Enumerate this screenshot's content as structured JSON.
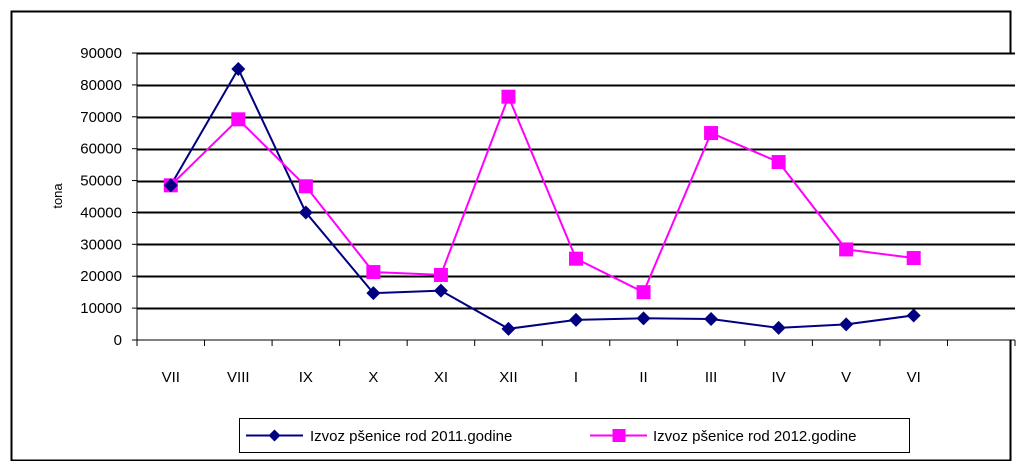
{
  "chart_data": {
    "type": "line",
    "title": "",
    "xlabel": "",
    "ylabel": "tona",
    "categories": [
      "VII",
      "VIII",
      "IX",
      "X",
      "XI",
      "XII",
      "I",
      "II",
      "III",
      "IV",
      "V",
      "VI"
    ],
    "ylim": [
      0,
      90000
    ],
    "yticks": [
      0,
      10000,
      20000,
      30000,
      40000,
      50000,
      60000,
      70000,
      80000,
      90000
    ],
    "grid": true,
    "legend_position": "bottom",
    "series": [
      {
        "name": "Izvoz pšenice rod 2011.godine",
        "color": "#000080",
        "marker": "diamond",
        "values": [
          48500,
          85000,
          40000,
          14700,
          15500,
          3500,
          6300,
          6800,
          6600,
          3800,
          4900,
          7700
        ]
      },
      {
        "name": "Izvoz pšenice rod 2012.godine",
        "color": "#FF00FF",
        "marker": "square",
        "values": [
          48500,
          69200,
          48200,
          21300,
          20400,
          76300,
          25500,
          15000,
          64900,
          55800,
          28400,
          25700
        ]
      }
    ]
  }
}
